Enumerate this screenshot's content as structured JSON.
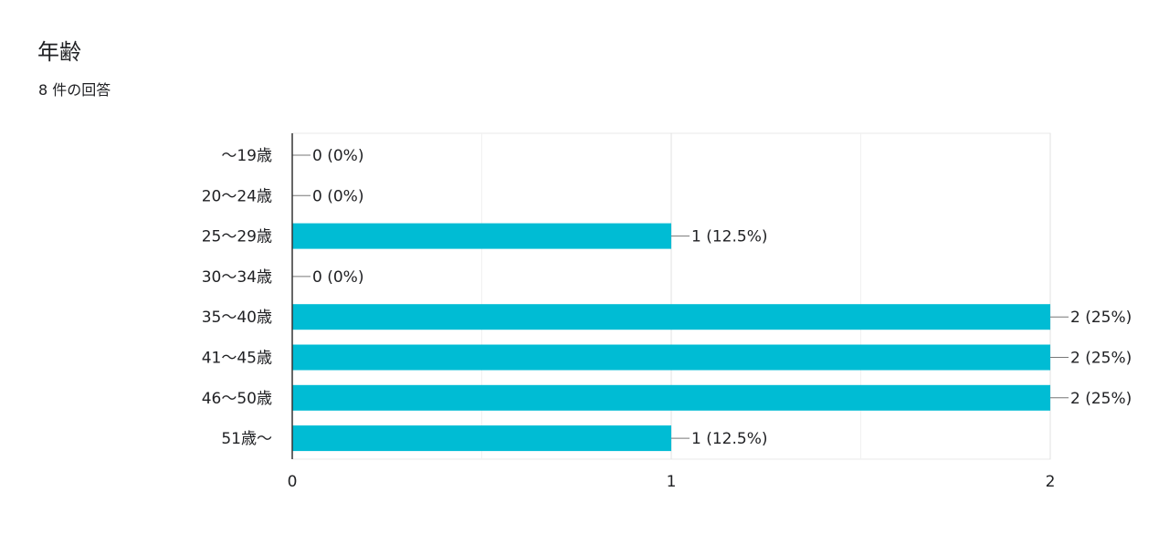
{
  "question": {
    "title": "年齢",
    "response_count": "8 件の回答"
  },
  "chart_data": {
    "type": "bar",
    "orientation": "horizontal",
    "categories": [
      "〜19歳",
      "20〜24歳",
      "25〜29歳",
      "30〜34歳",
      "35〜40歳",
      "41〜45歳",
      "46〜50歳",
      "51歳〜"
    ],
    "values": [
      0,
      0,
      1,
      0,
      2,
      2,
      2,
      1
    ],
    "value_labels": [
      "0 (0%)",
      "0 (0%)",
      "1 (12.5%)",
      "0 (0%)",
      "2 (25%)",
      "2 (25%)",
      "2 (25%)",
      "1 (12.5%)"
    ],
    "xlim": [
      0,
      2
    ],
    "x_ticks": [
      "0",
      "1",
      "2"
    ],
    "grid": true,
    "bar_color": "#00bcd4"
  }
}
